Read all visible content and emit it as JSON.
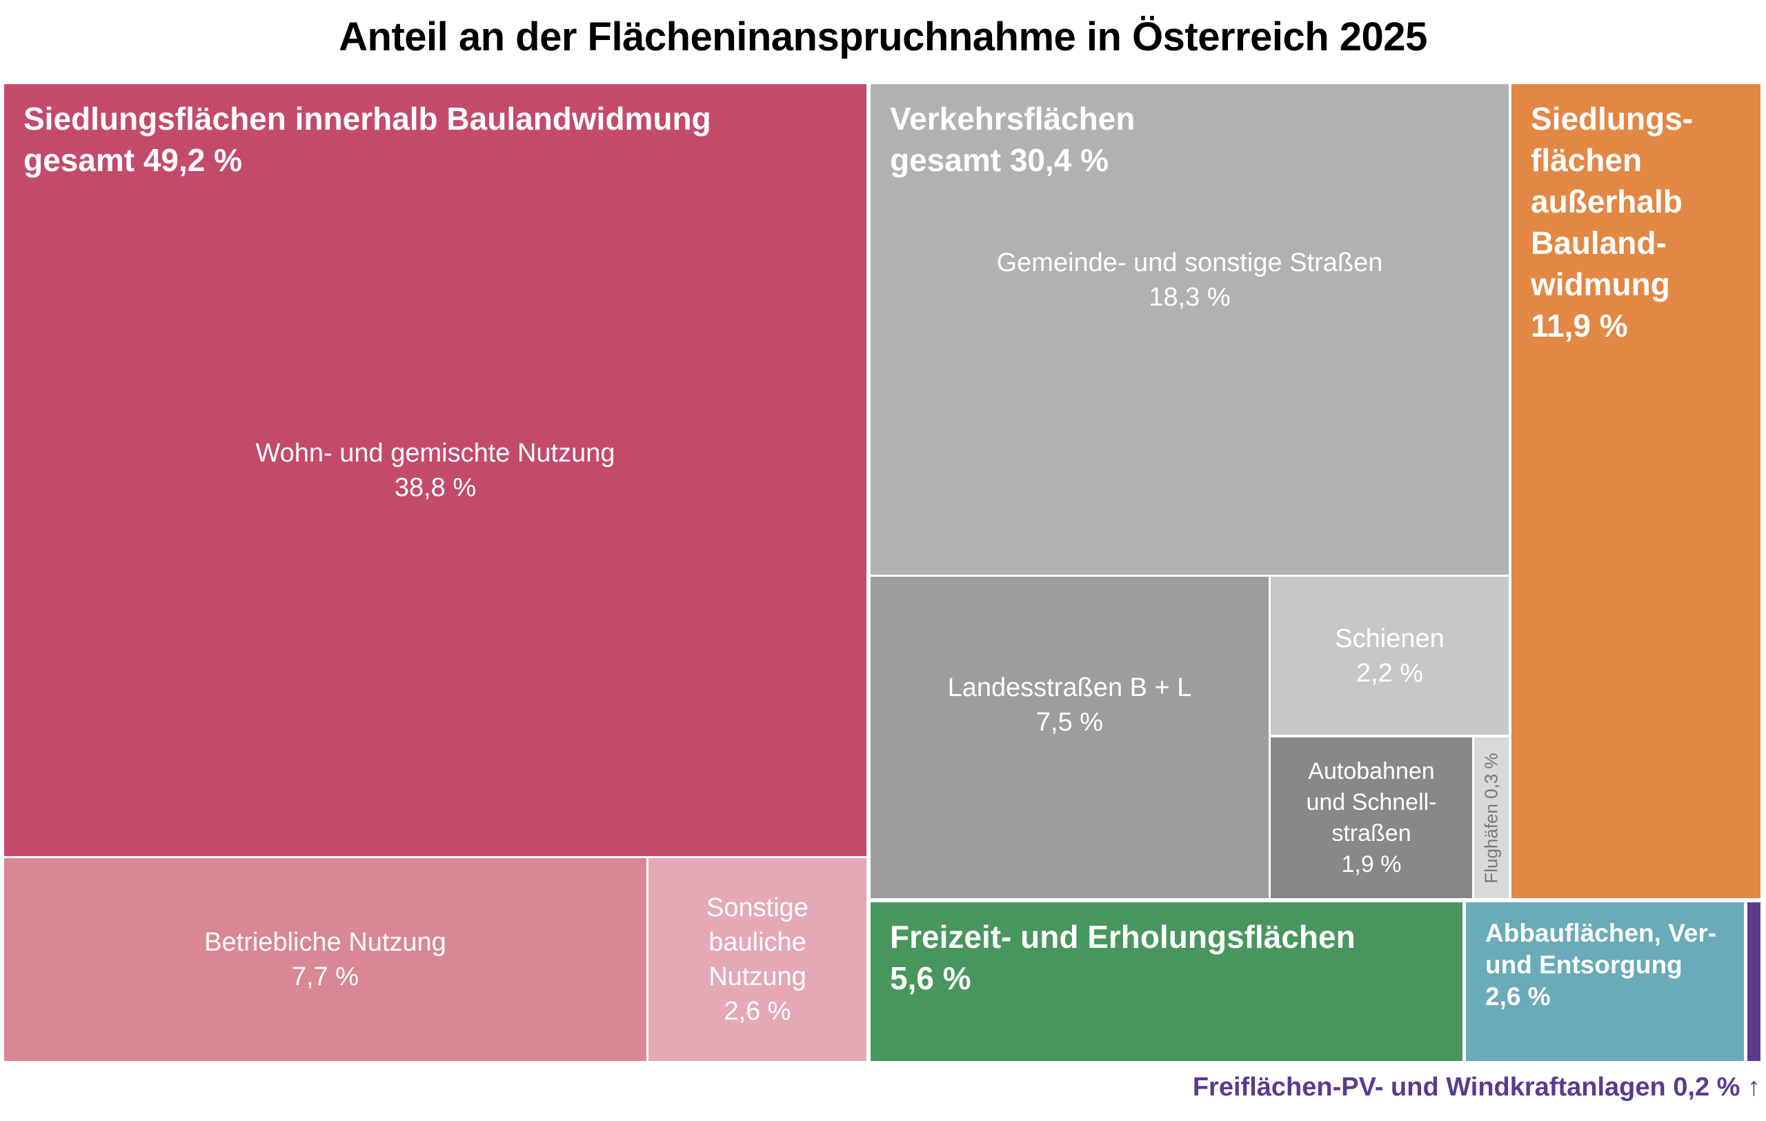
{
  "chart_data": {
    "type": "treemap",
    "title": "Anteil an der Flächeninanspruchnahme in Österreich 2025",
    "unit": "%",
    "groups": [
      {
        "label": "Siedlungsflächen innerhalb Baulandwidmung",
        "total_label": "gesamt 49,2 %",
        "value": 49.2,
        "color": "#c44a6a",
        "items": [
          {
            "label": "Wohn- und gemischte Nutzung",
            "value_label": "38,8 %",
            "value": 38.8,
            "color": "#c44a6a"
          },
          {
            "label": "Betriebliche Nutzung",
            "value_label": "7,7 %",
            "value": 7.7,
            "color": "#d98795"
          },
          {
            "label": "Sonstige bauliche Nutzung",
            "value_label": "2,6 %",
            "value": 2.6,
            "color": "#e4a9b4"
          }
        ]
      },
      {
        "label": "Verkehrsflächen",
        "total_label": "gesamt 30,4 %",
        "value": 30.4,
        "color": "#b1b1b1",
        "items": [
          {
            "label": "Gemeinde- und sonstige Straßen",
            "value_label": "18,3 %",
            "value": 18.3,
            "color": "#b1b1b1"
          },
          {
            "label": "Landesstraßen B + L",
            "value_label": "7,5 %",
            "value": 7.5,
            "color": "#9d9d9d"
          },
          {
            "label": "Schienen",
            "value_label": "2,2 %",
            "value": 2.2,
            "color": "#c6c7c6"
          },
          {
            "label": "Autobahnen und Schnell-straßen",
            "value_label": "1,9 %",
            "value": 1.9,
            "color": "#888888"
          },
          {
            "label": "Flughäfen 0,3 %",
            "value": 0.3,
            "color": "#d9d9d9"
          }
        ]
      },
      {
        "label": "Siedlungs-flächen außerhalb Bauland-widmung",
        "value_label": "11,9 %",
        "value": 11.9,
        "color": "#e38744"
      },
      {
        "label": "Freizeit- und Erholungsflächen",
        "value_label": "5,6 %",
        "value": 5.6,
        "color": "#47965e"
      },
      {
        "label": "Abbauflächen, Ver- und Entsorgung",
        "value_label": "2,6 %",
        "value": 2.6,
        "color": "#69abb8"
      },
      {
        "label": "Freiflächen-PV- und Windkraftanlagen 0,2 % ↑",
        "value": 0.2,
        "color": "#5b3a8e"
      }
    ]
  }
}
